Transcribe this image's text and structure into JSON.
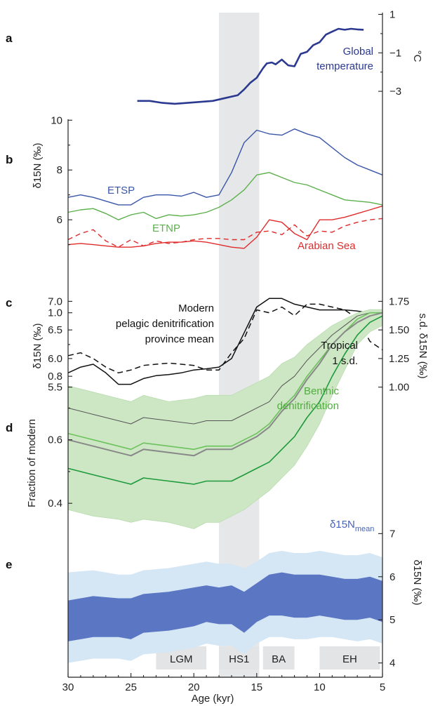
{
  "figure": {
    "panel_labels": [
      "a",
      "b",
      "c",
      "d",
      "e"
    ],
    "x_label": "Age (kyr)",
    "x_ticks": [
      30,
      25,
      20,
      15,
      10,
      5
    ],
    "hs1_band": [
      18,
      14.8
    ],
    "periods": [
      {
        "label": "LGM",
        "from": 23,
        "to": 19
      },
      {
        "label": "HS1",
        "from": 18,
        "to": 14.8
      },
      {
        "label": "BA",
        "from": 14.5,
        "to": 12
      },
      {
        "label": "EH",
        "from": 10,
        "to": 5.2
      }
    ]
  },
  "chart_data": [
    {
      "panel": "a",
      "type": "line",
      "ylabel_right": "°C",
      "yticks_right": [
        "1",
        "−1",
        "−3"
      ],
      "ytick_values": [
        1,
        -1,
        -3
      ],
      "ylim": [
        -4.2,
        1.2
      ],
      "series": [
        {
          "name": "Global temperature",
          "name_lines": [
            "Global",
            "temperature"
          ],
          "color": "#2b3990",
          "x": [
            24.5,
            23.5,
            22.5,
            21.5,
            20.5,
            19.5,
            18.5,
            17.5,
            16.5,
            16,
            15.5,
            15,
            14.5,
            14.2,
            13.8,
            13.5,
            13,
            12.5,
            12,
            11.5,
            11,
            10.5,
            10,
            9.5,
            9,
            8.5,
            8,
            7.5,
            7,
            6.5
          ],
          "y": [
            -3.5,
            -3.5,
            -3.6,
            -3.65,
            -3.6,
            -3.55,
            -3.5,
            -3.35,
            -3.2,
            -2.9,
            -2.55,
            -2.3,
            -1.8,
            -1.55,
            -1.5,
            -1.6,
            -1.35,
            -1.65,
            -1.7,
            -1.05,
            -0.95,
            -0.6,
            -0.45,
            -0.05,
            0.1,
            0.25,
            0.2,
            0.25,
            0.22,
            0.2
          ]
        }
      ]
    },
    {
      "panel": "b",
      "type": "line",
      "ylabel": "δ15N (‰)",
      "yticks": [
        "10",
        "8",
        "6"
      ],
      "ytick_values": [
        10,
        8,
        6
      ],
      "ylim": [
        4.2,
        10.6
      ],
      "series": [
        {
          "name": "ETSP",
          "color": "#3a56a8",
          "x": [
            30,
            29,
            28,
            26,
            25,
            24,
            23,
            22,
            21,
            20,
            19,
            18,
            17,
            16,
            15,
            14,
            13,
            12,
            11,
            10,
            9,
            8,
            7,
            6,
            5
          ],
          "y": [
            6.9,
            7.0,
            6.9,
            6.6,
            6.6,
            6.9,
            7.0,
            7.0,
            6.95,
            7.1,
            6.9,
            7.0,
            7.9,
            9.1,
            9.6,
            9.45,
            9.4,
            9.65,
            9.45,
            9.3,
            8.9,
            8.5,
            8.2,
            8.0,
            7.8
          ]
        },
        {
          "name": "ETNP",
          "color": "#5cb04c",
          "x": [
            30,
            29,
            28,
            27,
            26,
            25,
            24,
            23,
            22,
            21,
            20,
            19,
            18,
            17,
            16,
            15,
            14,
            13,
            12,
            11,
            10,
            9,
            8,
            7,
            6,
            5
          ],
          "y": [
            6.3,
            6.4,
            6.45,
            6.25,
            6.0,
            6.2,
            6.3,
            6.05,
            6.2,
            6.15,
            6.2,
            6.3,
            6.5,
            6.8,
            7.2,
            7.8,
            7.9,
            7.7,
            7.5,
            7.4,
            7.2,
            7.0,
            6.8,
            6.75,
            6.7,
            6.6
          ]
        },
        {
          "name": "Arabian Sea",
          "color": "#e02b2b",
          "x": [
            30,
            29,
            28,
            27,
            26,
            25,
            24,
            23,
            22,
            21,
            20,
            19,
            18,
            17,
            16,
            15,
            14,
            13,
            12,
            11,
            10,
            9,
            8,
            7,
            6,
            5
          ],
          "y": [
            5.0,
            5.05,
            5.0,
            4.95,
            4.9,
            4.9,
            4.95,
            5.05,
            5.1,
            5.1,
            5.15,
            5.1,
            5.0,
            4.9,
            4.85,
            5.3,
            6.0,
            5.9,
            5.45,
            5.2,
            6.0,
            6.0,
            6.1,
            6.25,
            6.4,
            6.55
          ]
        },
        {
          "name": "Arabian Sea (dashed)",
          "color": "#e02b2b",
          "dashed": true,
          "x": [
            30,
            29,
            28,
            27,
            26,
            25,
            24,
            23,
            22,
            21,
            20,
            19,
            18,
            17,
            16,
            15,
            14,
            13,
            12,
            11,
            10,
            9,
            8,
            7,
            6,
            5
          ],
          "y": [
            5.2,
            5.45,
            5.6,
            5.15,
            4.9,
            5.2,
            4.95,
            5.15,
            5.05,
            5.1,
            5.2,
            5.25,
            5.25,
            5.2,
            5.2,
            5.5,
            5.55,
            5.4,
            5.8,
            5.35,
            5.55,
            5.5,
            5.75,
            5.9,
            6.0,
            6.05
          ]
        }
      ]
    },
    {
      "panel": "c",
      "type": "line",
      "ylabel": "δ15N (‰)",
      "yticks": [
        "7.0",
        "6.5",
        "6.0",
        "5.5"
      ],
      "ytick_values": [
        7.0,
        6.5,
        6.0,
        5.5
      ],
      "ylim": [
        5.25,
        7.25
      ],
      "ylabel_right": "s.d. δ15N (‰)",
      "yticks_right": [
        "1.75",
        "1.50",
        "1.25",
        "1.00"
      ],
      "ytick_right_values": [
        1.75,
        1.5,
        1.25,
        1.0
      ],
      "series": [
        {
          "name": "Modern pelagic denitrification province mean",
          "name_lines": [
            "Modern",
            "pelagic denitrification",
            "province mean"
          ],
          "color": "#111111",
          "x": [
            30,
            29,
            28,
            27,
            26,
            25,
            24,
            23,
            22,
            21,
            20,
            19,
            18,
            17,
            16,
            15,
            14,
            13,
            12,
            11,
            10,
            9,
            8,
            7,
            6,
            5
          ],
          "y": [
            5.75,
            5.85,
            5.9,
            5.75,
            5.55,
            5.55,
            5.65,
            5.7,
            5.72,
            5.75,
            5.8,
            5.82,
            5.85,
            6.0,
            6.45,
            6.9,
            7.05,
            7.05,
            6.95,
            6.9,
            6.85,
            6.85,
            6.85,
            6.83,
            6.8,
            6.78
          ]
        },
        {
          "name": "Tropical 1 s.d.",
          "name_lines": [
            "Tropical",
            "1 s.d."
          ],
          "color": "#111111",
          "dashed": true,
          "x": [
            30,
            29,
            28,
            27,
            26,
            25,
            24,
            23,
            22,
            21,
            20,
            19,
            18,
            17,
            16,
            15,
            14,
            13,
            12,
            11,
            10,
            9,
            8,
            7,
            6,
            5
          ],
          "y": [
            6.05,
            6.1,
            6.0,
            5.85,
            5.75,
            5.8,
            5.88,
            5.9,
            5.92,
            5.9,
            5.88,
            5.8,
            5.8,
            6.1,
            6.35,
            6.85,
            6.8,
            6.9,
            6.75,
            6.95,
            6.95,
            6.9,
            6.85,
            6.7,
            6.3,
            6.15
          ]
        }
      ]
    },
    {
      "panel": "d",
      "type": "area",
      "ylabel": "Fraction of modern",
      "yticks": [
        "1.0",
        "0.8",
        "0.6",
        "0.4"
      ],
      "ytick_values": [
        1.0,
        0.8,
        0.6,
        0.4
      ],
      "ylim": [
        0.27,
        1.07
      ],
      "annotation": "Benthic denitrification",
      "annotation_lines": [
        "Benthic",
        "denitrification"
      ],
      "x": [
        30,
        28,
        26,
        25,
        24,
        22,
        20,
        19,
        18,
        17,
        16,
        15,
        14,
        13,
        12,
        11,
        10,
        9,
        8,
        7,
        6,
        5
      ],
      "band_upper": [
        0.77,
        0.75,
        0.73,
        0.72,
        0.74,
        0.72,
        0.73,
        0.74,
        0.74,
        0.74,
        0.76,
        0.78,
        0.8,
        0.84,
        0.86,
        0.9,
        0.93,
        0.96,
        0.98,
        1.0,
        1.01,
        1.01
      ],
      "band_lower": [
        0.38,
        0.36,
        0.35,
        0.34,
        0.35,
        0.34,
        0.32,
        0.34,
        0.34,
        0.36,
        0.38,
        0.41,
        0.44,
        0.48,
        0.52,
        0.58,
        0.65,
        0.74,
        0.82,
        0.9,
        0.94,
        0.96
      ],
      "series": [
        {
          "name": "upper",
          "color": "#555555",
          "width": 1,
          "y": [
            0.7,
            0.68,
            0.66,
            0.65,
            0.67,
            0.66,
            0.65,
            0.66,
            0.66,
            0.66,
            0.68,
            0.7,
            0.72,
            0.77,
            0.8,
            0.85,
            0.89,
            0.93,
            0.96,
            0.99,
            1.0,
            1.0
          ]
        },
        {
          "name": "median light",
          "color": "#6cc25c",
          "width": 1.6,
          "y": [
            0.62,
            0.6,
            0.58,
            0.57,
            0.59,
            0.58,
            0.57,
            0.58,
            0.58,
            0.58,
            0.6,
            0.62,
            0.65,
            0.7,
            0.74,
            0.8,
            0.85,
            0.9,
            0.94,
            0.98,
            1.0,
            1.0
          ]
        },
        {
          "name": "grey",
          "color": "#888888",
          "width": 2,
          "y": [
            0.6,
            0.58,
            0.56,
            0.55,
            0.57,
            0.56,
            0.55,
            0.57,
            0.57,
            0.57,
            0.59,
            0.61,
            0.64,
            0.69,
            0.73,
            0.79,
            0.84,
            0.9,
            0.94,
            0.97,
            0.99,
            1.0
          ]
        },
        {
          "name": "lower",
          "color": "#1e9a3c",
          "width": 1.6,
          "y": [
            0.51,
            0.49,
            0.47,
            0.46,
            0.48,
            0.47,
            0.46,
            0.47,
            0.47,
            0.47,
            0.49,
            0.51,
            0.53,
            0.57,
            0.61,
            0.67,
            0.72,
            0.8,
            0.87,
            0.93,
            0.97,
            0.99
          ]
        }
      ]
    },
    {
      "panel": "e",
      "type": "area",
      "legend_label": "δ15Nmean",
      "legend_main": "δ15N",
      "legend_sub": "mean",
      "ylabel_right": "δ15N (‰)",
      "yticks_right": [
        "7",
        "6",
        "5",
        "4"
      ],
      "ytick_values": [
        7,
        6,
        5,
        4
      ],
      "ylim": [
        3.75,
        7.25
      ],
      "x": [
        30,
        28,
        26,
        25,
        24,
        22,
        20,
        19,
        18,
        17,
        16,
        15,
        14,
        13,
        12,
        11,
        10,
        9,
        8,
        7,
        6,
        5
      ],
      "outer_upper": [
        6.1,
        6.15,
        6.05,
        6.05,
        6.15,
        6.2,
        6.3,
        6.35,
        6.3,
        6.3,
        6.2,
        6.35,
        6.55,
        6.6,
        6.55,
        6.55,
        6.6,
        6.55,
        6.5,
        6.5,
        6.55,
        6.45
      ],
      "outer_lower": [
        4.0,
        4.1,
        4.1,
        4.05,
        4.2,
        4.25,
        4.35,
        4.45,
        4.4,
        4.4,
        4.2,
        4.45,
        4.6,
        4.6,
        4.55,
        4.55,
        4.6,
        4.6,
        4.55,
        4.5,
        4.55,
        4.45
      ],
      "inner_upper": [
        5.45,
        5.55,
        5.5,
        5.5,
        5.6,
        5.65,
        5.75,
        5.8,
        5.75,
        5.8,
        5.65,
        5.85,
        6.05,
        6.1,
        6.05,
        6.05,
        6.05,
        6.0,
        5.95,
        5.95,
        6.0,
        5.9
      ],
      "inner_lower": [
        4.5,
        4.6,
        4.6,
        4.55,
        4.7,
        4.75,
        4.85,
        4.95,
        4.9,
        4.9,
        4.7,
        4.95,
        5.1,
        5.1,
        5.05,
        5.05,
        5.1,
        5.05,
        5.0,
        5.0,
        5.05,
        4.95
      ]
    }
  ]
}
